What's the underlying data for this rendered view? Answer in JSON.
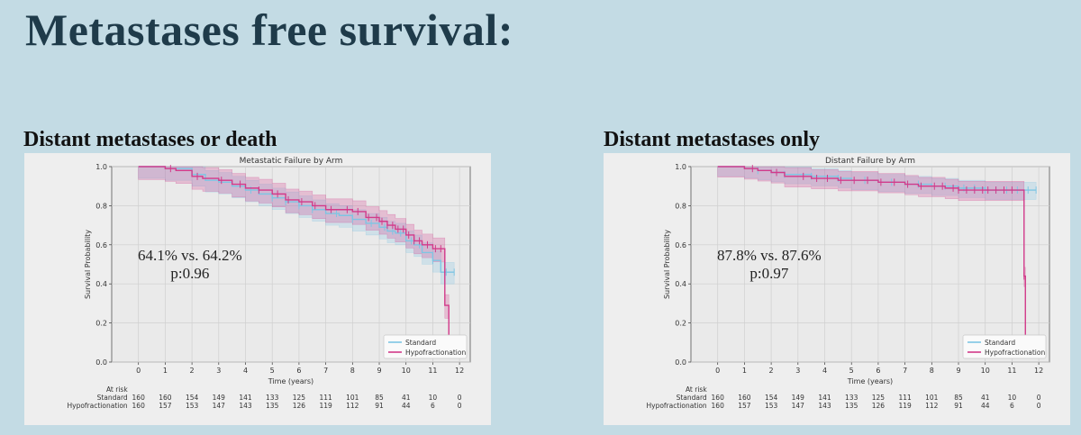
{
  "slide": {
    "title": "Metastases free survival:",
    "left_heading": "Distant metastases or death",
    "right_heading": "Distant metastases only"
  },
  "chart_data": [
    {
      "type": "line",
      "title": "Metastatic Failure by Arm",
      "xlabel": "Time (years)",
      "ylabel": "Survival Probability",
      "xlim": [
        -1,
        12.4
      ],
      "ylim": [
        0,
        1
      ],
      "xticks": [
        0,
        1,
        2,
        3,
        4,
        5,
        6,
        7,
        8,
        9,
        10,
        11,
        12
      ],
      "yticks": [
        0.0,
        0.2,
        0.4,
        0.6,
        0.8,
        1.0
      ],
      "grid": true,
      "legend_position": "bottom-right",
      "annotation": {
        "line1": "64.1% vs. 64.2%",
        "line2": "p:0.96"
      },
      "series": [
        {
          "name": "Standard",
          "color": "#7ec5e3",
          "x": [
            0,
            1,
            2,
            2.5,
            3,
            3.5,
            4,
            4.5,
            5,
            5.5,
            6,
            6.5,
            7,
            7.5,
            8,
            8.5,
            9,
            9.3,
            9.6,
            10,
            10.3,
            10.6,
            11,
            11.3,
            11.5,
            11.8
          ],
          "y": [
            1.0,
            0.99,
            0.96,
            0.93,
            0.92,
            0.9,
            0.88,
            0.86,
            0.84,
            0.82,
            0.8,
            0.78,
            0.76,
            0.75,
            0.73,
            0.71,
            0.69,
            0.67,
            0.66,
            0.62,
            0.6,
            0.56,
            0.52,
            0.46,
            0.46,
            0.46
          ],
          "ci_half": 0.05,
          "censors": [
            4.2,
            5,
            5.5,
            6,
            6.5,
            7.4,
            8,
            8.7,
            9.2,
            9.5,
            9.8,
            10.2,
            10.5,
            11,
            11.5,
            11.8
          ]
        },
        {
          "name": "Hypofractionation",
          "color": "#d23a8a",
          "x": [
            0,
            0.6,
            1,
            1.4,
            2,
            2.4,
            3,
            3.5,
            4,
            4.5,
            5,
            5.5,
            6,
            6.5,
            7,
            7.5,
            8,
            8.5,
            9,
            9.3,
            9.6,
            10,
            10.3,
            10.6,
            11,
            11.3,
            11.45,
            11.6
          ],
          "y": [
            1.0,
            1.0,
            0.99,
            0.98,
            0.95,
            0.94,
            0.93,
            0.91,
            0.89,
            0.88,
            0.86,
            0.83,
            0.82,
            0.8,
            0.78,
            0.78,
            0.77,
            0.74,
            0.72,
            0.7,
            0.68,
            0.65,
            0.62,
            0.6,
            0.58,
            0.58,
            0.29,
            0.13
          ],
          "ci_half": 0.055,
          "censors": [
            1.2,
            2.2,
            3.1,
            3.8,
            4.5,
            5.2,
            5.6,
            6.1,
            6.6,
            7.2,
            7.8,
            8.2,
            8.6,
            8.9,
            9.1,
            9.3,
            9.5,
            9.7,
            9.9,
            10.1,
            10.3,
            10.5,
            10.8,
            11.1,
            11.3
          ]
        }
      ],
      "at_risk": {
        "title": "At risk",
        "times": [
          0,
          1,
          2,
          3,
          4,
          5,
          6,
          7,
          8,
          9,
          10,
          11,
          12
        ],
        "rows": [
          {
            "label": "Standard",
            "values": [
              "160",
              "160",
              "154",
              "149",
              "141",
              "133",
              "125",
              "111",
              "101",
              "85",
              "41",
              "10",
              "0"
            ]
          },
          {
            "label": "Hypofractionation",
            "values": [
              "160",
              "157",
              "153",
              "147",
              "143",
              "135",
              "126",
              "119",
              "112",
              "91",
              "44",
              "6",
              "0"
            ]
          }
        ]
      }
    },
    {
      "type": "line",
      "title": "Distant Failure by Arm",
      "xlabel": "Time (years)",
      "ylabel": "Survival Probability",
      "xlim": [
        -1,
        12.4
      ],
      "ylim": [
        0,
        1
      ],
      "xticks": [
        0,
        1,
        2,
        3,
        4,
        5,
        6,
        7,
        8,
        9,
        10,
        11,
        12
      ],
      "yticks": [
        0.0,
        0.2,
        0.4,
        0.6,
        0.8,
        1.0
      ],
      "grid": true,
      "legend_position": "bottom-right",
      "annotation": {
        "line1": "87.8% vs. 87.6%",
        "line2": "p:0.97"
      },
      "series": [
        {
          "name": "Standard",
          "color": "#7ec5e3",
          "x": [
            0,
            1,
            1.5,
            2,
            2.5,
            3,
            3.5,
            4,
            4.5,
            5,
            5.5,
            6,
            6.5,
            7,
            7.5,
            8,
            8.5,
            9,
            9.5,
            10,
            10.5,
            11,
            11.5,
            11.9
          ],
          "y": [
            1.0,
            0.99,
            0.98,
            0.97,
            0.96,
            0.96,
            0.95,
            0.95,
            0.94,
            0.93,
            0.93,
            0.92,
            0.92,
            0.91,
            0.91,
            0.9,
            0.9,
            0.89,
            0.89,
            0.88,
            0.88,
            0.88,
            0.88,
            0.88
          ],
          "ci_half": 0.04,
          "censors": [
            1.5,
            2.5,
            3.5,
            4.5,
            5.5,
            6.5,
            7.5,
            8.5,
            9.2,
            9.6,
            10,
            10.4,
            10.8,
            11.2,
            11.6,
            11.9
          ]
        },
        {
          "name": "Hypofractionation",
          "color": "#d23a8a",
          "x": [
            0,
            0.7,
            1,
            1.5,
            2,
            2.5,
            3,
            3.5,
            4,
            4.5,
            5,
            5.5,
            6,
            6.5,
            7,
            7.5,
            8,
            8.5,
            9,
            9.5,
            10,
            10.5,
            11,
            11.3,
            11.45,
            11.5
          ],
          "y": [
            1.0,
            1.0,
            0.99,
            0.98,
            0.97,
            0.95,
            0.95,
            0.94,
            0.94,
            0.93,
            0.93,
            0.93,
            0.92,
            0.92,
            0.91,
            0.9,
            0.9,
            0.89,
            0.88,
            0.88,
            0.88,
            0.88,
            0.88,
            0.88,
            0.44,
            0.12
          ],
          "ci_half": 0.045,
          "censors": [
            1.3,
            2.2,
            3.2,
            3.7,
            4.1,
            4.6,
            5.1,
            5.6,
            6.1,
            6.6,
            7.1,
            7.6,
            8.1,
            8.4,
            8.8,
            9.0,
            9.3,
            9.6,
            9.9,
            10.1,
            10.4,
            10.7,
            11.0,
            11.45
          ]
        }
      ],
      "at_risk": {
        "title": "At risk",
        "times": [
          0,
          1,
          2,
          3,
          4,
          5,
          6,
          7,
          8,
          9,
          10,
          11,
          12
        ],
        "rows": [
          {
            "label": "Standard",
            "values": [
              "160",
              "160",
              "154",
              "149",
              "141",
              "133",
              "125",
              "111",
              "101",
              "85",
              "41",
              "10",
              "0"
            ]
          },
          {
            "label": "Hypofractionation",
            "values": [
              "160",
              "157",
              "153",
              "147",
              "143",
              "135",
              "126",
              "119",
              "112",
              "91",
              "44",
              "6",
              "0"
            ]
          }
        ]
      }
    }
  ]
}
